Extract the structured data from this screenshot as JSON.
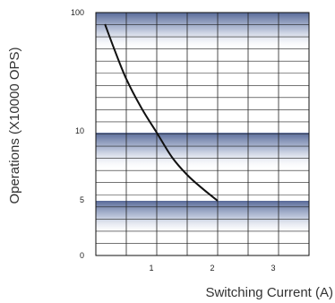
{
  "chart_data": {
    "type": "line",
    "xlabel": "Switching Current (A)",
    "ylabel": "Operations (X10000 OPS)",
    "x_ticks": [
      "1",
      "2",
      "3"
    ],
    "y_ticks": [
      "100",
      "10",
      "5",
      "0"
    ],
    "xlim": [
      0,
      3.5
    ],
    "ylim_labels": [
      "0",
      "5",
      "10",
      "100"
    ],
    "grid": true,
    "series": [
      {
        "line_color": "#111111",
        "points": [
          {
            "x": 0.15,
            "y": 80
          },
          {
            "x": 0.3,
            "y": 50
          },
          {
            "x": 0.5,
            "y": 28
          },
          {
            "x": 0.75,
            "y": 16
          },
          {
            "x": 1.0,
            "y": 10
          },
          {
            "x": 1.25,
            "y": 8.2
          },
          {
            "x": 1.5,
            "y": 6.9
          },
          {
            "x": 1.75,
            "y": 5.9
          },
          {
            "x": 2.0,
            "y": 5
          }
        ]
      }
    ],
    "band_color": "#3a4f86"
  }
}
